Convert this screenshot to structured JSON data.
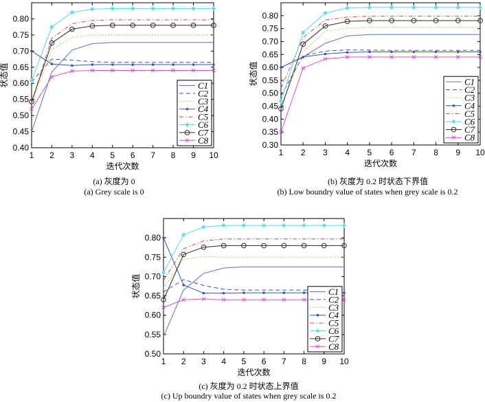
{
  "colors": {
    "C1": "#5a6fc6",
    "C2": "#3b4fb0",
    "C3": "#b6b62e",
    "C4": "#2f56b8",
    "C5": "#e0443a",
    "C6": "#56d6ec",
    "C7": "#2a2a2a",
    "C8": "#d14fcf"
  },
  "captions": {
    "a_zh": "(a) 灰度为 0",
    "a_en": "(a) Grey scale is 0",
    "b_zh": "(b) 灰度为 0.2 时状态下界值",
    "b_en": "(b)  Low boundry value of states when grey scale is 0.2",
    "c_zh": "(c) 灰度为 0.2 时状态上界值",
    "c_en": "(c) Up boundry value of states when grey scale is 0.2"
  },
  "chart_data": [
    {
      "type": "line",
      "xlabel": "迭代次数",
      "ylabel": "状态值",
      "xlim": [
        1,
        10
      ],
      "ylim": [
        0.4,
        0.85
      ],
      "yticks": [
        0.4,
        0.45,
        0.5,
        0.55,
        0.6,
        0.65,
        0.7,
        0.75,
        0.8
      ],
      "x": [
        1,
        2,
        3,
        4,
        5,
        6,
        7,
        8,
        9,
        10
      ],
      "legend": "right",
      "series": [
        {
          "name": "C1",
          "values": [
            0.45,
            0.635,
            0.703,
            0.723,
            0.727,
            0.727,
            0.727,
            0.727,
            0.727,
            0.727
          ]
        },
        {
          "name": "C2",
          "values": [
            0.605,
            0.675,
            0.672,
            0.667,
            0.665,
            0.665,
            0.665,
            0.665,
            0.665,
            0.665
          ]
        },
        {
          "name": "C3",
          "values": [
            0.535,
            0.705,
            0.742,
            0.75,
            0.75,
            0.75,
            0.75,
            0.75,
            0.75,
            0.75
          ]
        },
        {
          "name": "C4",
          "values": [
            0.7,
            0.66,
            0.655,
            0.658,
            0.658,
            0.658,
            0.658,
            0.658,
            0.658,
            0.658
          ]
        },
        {
          "name": "C5",
          "values": [
            0.54,
            0.74,
            0.785,
            0.795,
            0.797,
            0.797,
            0.797,
            0.797,
            0.797,
            0.797
          ]
        },
        {
          "name": "C6",
          "values": [
            0.608,
            0.775,
            0.82,
            0.83,
            0.832,
            0.832,
            0.832,
            0.832,
            0.832,
            0.832
          ]
        },
        {
          "name": "C7",
          "values": [
            0.543,
            0.725,
            0.768,
            0.778,
            0.78,
            0.78,
            0.78,
            0.78,
            0.78,
            0.78
          ]
        },
        {
          "name": "C8",
          "values": [
            0.52,
            0.62,
            0.638,
            0.64,
            0.64,
            0.64,
            0.64,
            0.64,
            0.64,
            0.64
          ]
        }
      ]
    },
    {
      "type": "line",
      "xlabel": "迭代次数",
      "ylabel": "状态值",
      "xlim": [
        1,
        10
      ],
      "ylim": [
        0.3,
        0.85
      ],
      "yticks": [
        0.3,
        0.35,
        0.4,
        0.45,
        0.5,
        0.55,
        0.6,
        0.65,
        0.7,
        0.75,
        0.8
      ],
      "x": [
        1,
        2,
        3,
        4,
        5,
        6,
        7,
        8,
        9,
        10
      ],
      "legend": "right",
      "series": [
        {
          "name": "C1",
          "values": [
            0.6,
            0.64,
            0.693,
            0.722,
            0.727,
            0.727,
            0.727,
            0.727,
            0.727,
            0.727
          ]
        },
        {
          "name": "C2",
          "values": [
            0.49,
            0.645,
            0.663,
            0.668,
            0.667,
            0.666,
            0.666,
            0.666,
            0.666,
            0.666
          ]
        },
        {
          "name": "C3",
          "values": [
            0.45,
            0.66,
            0.74,
            0.752,
            0.755,
            0.755,
            0.755,
            0.755,
            0.755,
            0.755
          ]
        },
        {
          "name": "C4",
          "values": [
            0.6,
            0.64,
            0.652,
            0.658,
            0.66,
            0.66,
            0.66,
            0.66,
            0.66,
            0.66
          ]
        },
        {
          "name": "C5",
          "values": [
            0.52,
            0.715,
            0.783,
            0.795,
            0.798,
            0.798,
            0.798,
            0.798,
            0.798,
            0.798
          ]
        },
        {
          "name": "C6",
          "values": [
            0.47,
            0.735,
            0.81,
            0.83,
            0.832,
            0.832,
            0.832,
            0.832,
            0.832,
            0.832
          ]
        },
        {
          "name": "C7",
          "values": [
            0.44,
            0.69,
            0.76,
            0.778,
            0.781,
            0.781,
            0.781,
            0.781,
            0.781,
            0.781
          ]
        },
        {
          "name": "C8",
          "values": [
            0.35,
            0.597,
            0.633,
            0.64,
            0.64,
            0.64,
            0.64,
            0.64,
            0.64,
            0.64
          ]
        }
      ]
    },
    {
      "type": "line",
      "xlabel": "迭代次数",
      "ylabel": "状态值",
      "xlim": [
        1,
        10
      ],
      "ylim": [
        0.5,
        0.85
      ],
      "yticks": [
        0.5,
        0.55,
        0.6,
        0.65,
        0.7,
        0.75,
        0.8
      ],
      "x": [
        1,
        2,
        3,
        4,
        5,
        6,
        7,
        8,
        9,
        10
      ],
      "legend": "right",
      "series": [
        {
          "name": "C1",
          "values": [
            0.545,
            0.665,
            0.708,
            0.722,
            0.725,
            0.725,
            0.725,
            0.725,
            0.725,
            0.725
          ]
        },
        {
          "name": "C2",
          "values": [
            0.66,
            0.692,
            0.677,
            0.667,
            0.665,
            0.665,
            0.665,
            0.665,
            0.665,
            0.665
          ]
        },
        {
          "name": "C3",
          "values": [
            0.67,
            0.745,
            0.752,
            0.75,
            0.75,
            0.75,
            0.75,
            0.75,
            0.75,
            0.75
          ]
        },
        {
          "name": "C4",
          "values": [
            0.8,
            0.678,
            0.657,
            0.657,
            0.658,
            0.658,
            0.658,
            0.658,
            0.658,
            0.658
          ]
        },
        {
          "name": "C5",
          "values": [
            0.69,
            0.772,
            0.792,
            0.797,
            0.797,
            0.797,
            0.797,
            0.797,
            0.797,
            0.797
          ]
        },
        {
          "name": "C6",
          "values": [
            0.71,
            0.808,
            0.828,
            0.832,
            0.832,
            0.832,
            0.832,
            0.832,
            0.832,
            0.832
          ]
        },
        {
          "name": "C7",
          "values": [
            0.64,
            0.757,
            0.776,
            0.78,
            0.78,
            0.78,
            0.78,
            0.78,
            0.78,
            0.78
          ]
        },
        {
          "name": "C8",
          "values": [
            0.62,
            0.64,
            0.642,
            0.64,
            0.64,
            0.64,
            0.64,
            0.64,
            0.64,
            0.64
          ]
        }
      ]
    }
  ]
}
